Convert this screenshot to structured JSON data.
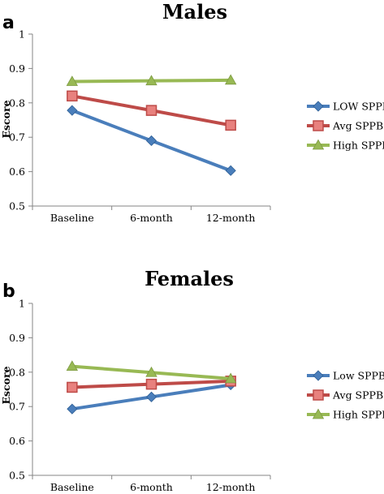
{
  "chart_data": [
    {
      "type": "line",
      "panel": "a",
      "title": "Males",
      "ylabel": "Escore",
      "xlabel": "",
      "categories": [
        "Baseline",
        "6-month",
        "12-month"
      ],
      "ylim": [
        0.5,
        1
      ],
      "yticks": [
        "0.5",
        "0.6",
        "0.7",
        "0.8",
        "0.9",
        "1"
      ],
      "grid": false,
      "legend_position": "right",
      "series": [
        {
          "name": "LOW SPPB",
          "values": [
            0.778,
            0.69,
            0.603
          ],
          "color": "#4a7ebb",
          "marker": "diamond"
        },
        {
          "name": "Avg SPPB",
          "values": [
            0.82,
            0.778,
            0.735
          ],
          "color": "#be4b48",
          "marker": "square"
        },
        {
          "name": "High SPPB",
          "values": [
            0.862,
            0.864,
            0.866
          ],
          "color": "#98b954",
          "marker": "triangle"
        }
      ]
    },
    {
      "type": "line",
      "panel": "b",
      "title": "Females",
      "ylabel": "Escore",
      "xlabel": "",
      "categories": [
        "Baseline",
        "6-month",
        "12-month"
      ],
      "ylim": [
        0.5,
        1
      ],
      "yticks": [
        "0.5",
        "0.6",
        "0.7",
        "0.8",
        "0.9",
        "1"
      ],
      "grid": false,
      "legend_position": "right",
      "series": [
        {
          "name": "Low SPPB",
          "values": [
            0.693,
            0.728,
            0.763
          ],
          "color": "#4a7ebb",
          "marker": "diamond"
        },
        {
          "name": "Avg SPPB",
          "values": [
            0.756,
            0.765,
            0.774
          ],
          "color": "#be4b48",
          "marker": "square"
        },
        {
          "name": "High SPPB",
          "values": [
            0.817,
            0.799,
            0.781
          ],
          "color": "#98b954",
          "marker": "triangle"
        }
      ]
    }
  ]
}
